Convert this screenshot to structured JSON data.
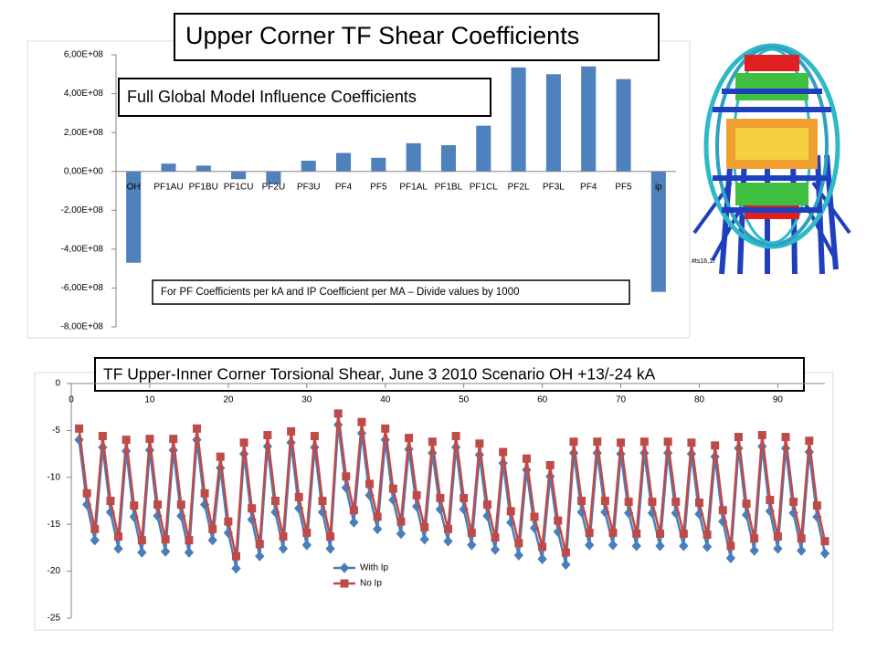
{
  "chart_data": [
    {
      "type": "bar",
      "title": "Upper Corner TF Shear Coefficients",
      "subtitle": "Full Global Model Influence Coefficients",
      "annotation": "For PF Coefficients per kA and IP Coefficient per MA  – Divide values by 1000",
      "categories": [
        "OH",
        "PF1AU",
        "PF1BU",
        "PF1CU",
        "PF2U",
        "PF3U",
        "PF4",
        "PF5",
        "PF1AL",
        "PF1BL",
        "PF1CL",
        "PF2L",
        "PF3L",
        "PF4",
        "PF5",
        "ip"
      ],
      "values": [
        -470000000,
        40000000,
        30000000,
        -40000000,
        -65000000,
        55000000,
        95000000,
        70000000,
        145000000,
        135000000,
        235000000,
        535000000,
        500000000,
        540000000,
        475000000,
        -620000000
      ],
      "color": "#4f81bd",
      "grid": false,
      "ylim": [
        -800000000,
        600000000
      ],
      "yticks": [
        {
          "value": -800000000,
          "label": "-8,00E+08"
        },
        {
          "value": -600000000,
          "label": "-6,00E+08"
        },
        {
          "value": -400000000,
          "label": "-4,00E+08"
        },
        {
          "value": -200000000,
          "label": "-2,00E+08"
        },
        {
          "value": 0,
          "label": "0,00E+00"
        },
        {
          "value": 200000000,
          "label": "2,00E+08"
        },
        {
          "value": 400000000,
          "label": "4,00E+08"
        },
        {
          "value": 600000000,
          "label": "6,00E+08"
        }
      ]
    },
    {
      "type": "line",
      "title": "TF Upper-Inner Corner Torsional Shear, June 3 2010 Scenario OH  +13/-24 kA",
      "x": [
        1,
        2,
        3,
        4,
        5,
        6,
        7,
        8,
        9,
        10,
        11,
        12,
        13,
        14,
        15,
        16,
        17,
        18,
        19,
        20,
        21,
        22,
        23,
        24,
        25,
        26,
        27,
        28,
        29,
        30,
        31,
        32,
        33,
        34,
        35,
        36,
        37,
        38,
        39,
        40,
        41,
        42,
        43,
        44,
        45,
        46,
        47,
        48,
        49,
        50,
        51,
        52,
        53,
        54,
        55,
        56,
        57,
        58,
        59,
        60,
        61,
        62,
        63,
        64,
        65,
        66,
        67,
        68,
        69,
        70,
        71,
        72,
        73,
        74,
        75,
        76,
        77,
        78,
        79,
        80,
        81,
        82,
        83,
        84,
        85,
        86,
        87,
        88,
        89,
        90,
        91,
        92,
        93,
        94,
        95,
        96
      ],
      "xlim": [
        0,
        96
      ],
      "xticks": [
        0,
        10,
        20,
        30,
        40,
        50,
        60,
        70,
        80,
        90
      ],
      "ylim": [
        -25,
        0
      ],
      "yticks": [
        -25,
        -20,
        -15,
        -10,
        -5,
        0
      ],
      "grid": false,
      "legend": "bottom",
      "series": [
        {
          "name": "With Ip",
          "color": "#4a7ebb",
          "marker": "diamond",
          "values": [
            -6.0,
            -12.9,
            -16.7,
            -6.8,
            -13.7,
            -17.6,
            -7.2,
            -14.2,
            -18.0,
            -7.1,
            -14.1,
            -17.9,
            -7.1,
            -14.1,
            -18.0,
            -6.0,
            -12.9,
            -16.7,
            -9.0,
            -15.9,
            -19.7,
            -7.5,
            -14.5,
            -18.4,
            -6.7,
            -13.7,
            -17.6,
            -6.3,
            -13.3,
            -17.2,
            -6.8,
            -13.7,
            -17.6,
            -4.4,
            -11.1,
            -14.8,
            -5.3,
            -11.9,
            -15.5,
            -6.0,
            -12.4,
            -16.0,
            -7.0,
            -13.1,
            -16.6,
            -7.4,
            -13.4,
            -16.8,
            -6.8,
            -13.4,
            -17.2,
            -7.6,
            -14.1,
            -17.7,
            -8.5,
            -14.8,
            -18.3,
            -9.2,
            -15.4,
            -18.7,
            -9.9,
            -15.8,
            -19.3,
            -7.4,
            -13.7,
            -17.2,
            -7.4,
            -13.7,
            -17.2,
            -7.5,
            -13.8,
            -17.3,
            -7.4,
            -13.8,
            -17.3,
            -7.4,
            -13.8,
            -17.3,
            -7.5,
            -13.9,
            -17.4,
            -7.8,
            -14.7,
            -18.6,
            -6.9,
            -14.0,
            -17.8,
            -6.7,
            -13.6,
            -17.6,
            -6.9,
            -13.8,
            -17.8,
            -7.3,
            -14.2,
            -18.1
          ]
        },
        {
          "name": "No Ip",
          "color": "#be4b48",
          "marker": "square",
          "values": [
            -4.8,
            -11.7,
            -15.5,
            -5.6,
            -12.5,
            -16.3,
            -6.0,
            -13.0,
            -16.7,
            -5.9,
            -12.9,
            -16.6,
            -5.9,
            -12.9,
            -16.7,
            -4.8,
            -11.7,
            -15.5,
            -7.8,
            -14.7,
            -18.4,
            -6.3,
            -13.3,
            -17.1,
            -5.5,
            -12.5,
            -16.3,
            -5.1,
            -12.1,
            -15.9,
            -5.6,
            -12.5,
            -16.3,
            -3.2,
            -9.9,
            -13.5,
            -4.1,
            -10.7,
            -14.2,
            -4.8,
            -11.2,
            -14.7,
            -5.8,
            -11.9,
            -15.3,
            -6.2,
            -12.2,
            -15.5,
            -5.6,
            -12.2,
            -15.9,
            -6.4,
            -12.9,
            -16.4,
            -7.3,
            -13.6,
            -17.0,
            -8.0,
            -14.2,
            -17.4,
            -8.7,
            -14.6,
            -18.0,
            -6.2,
            -12.5,
            -15.9,
            -6.2,
            -12.5,
            -15.9,
            -6.3,
            -12.6,
            -16.0,
            -6.2,
            -12.6,
            -16.0,
            -6.2,
            -12.6,
            -16.0,
            -6.3,
            -12.7,
            -16.1,
            -6.6,
            -13.5,
            -17.3,
            -5.7,
            -12.8,
            -16.5,
            -5.5,
            -12.4,
            -16.3,
            -5.7,
            -12.6,
            -16.5,
            -6.1,
            -13.0,
            -16.8
          ]
        }
      ]
    }
  ],
  "image_caption": "#ts16,1t"
}
